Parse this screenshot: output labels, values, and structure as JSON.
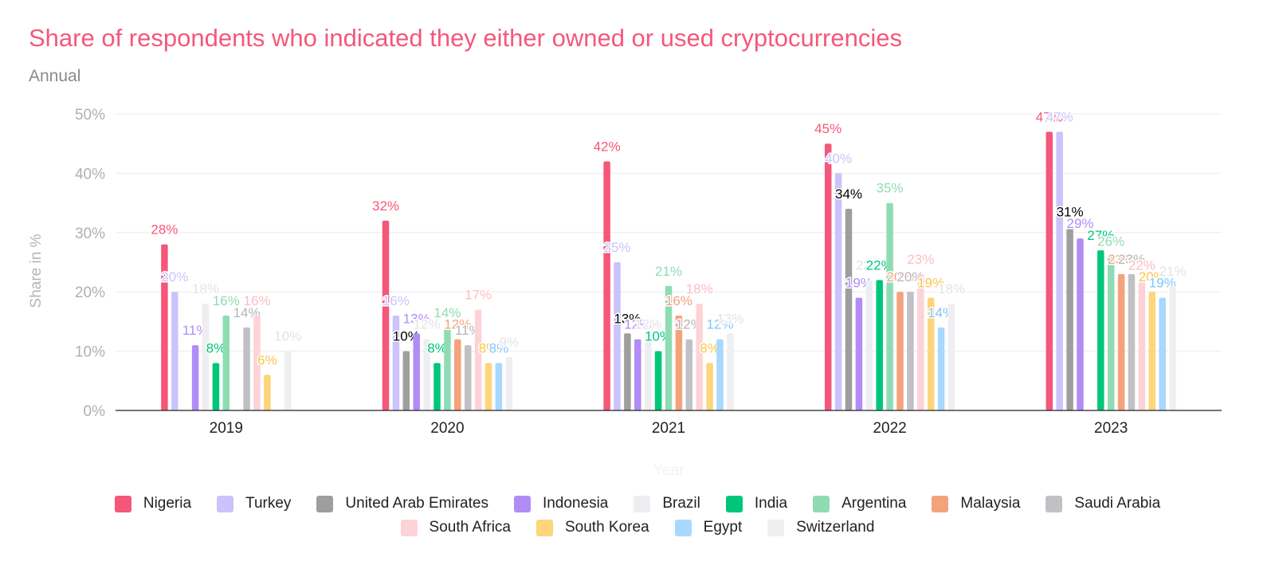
{
  "chart_data": {
    "type": "bar",
    "title": "Share of respondents who indicated they either owned or used cryptocurrencies",
    "subtitle": "Annual",
    "xlabel": "Year",
    "ylabel": "Share in %",
    "ylim": [
      0,
      50
    ],
    "yticks": [
      "0%",
      "10%",
      "20%",
      "30%",
      "40%",
      "50%"
    ],
    "grid": true,
    "legend_position": "bottom",
    "categories": [
      "2019",
      "2020",
      "2021",
      "2022",
      "2023"
    ],
    "series": [
      {
        "name": "Nigeria",
        "color": "#f5577a",
        "values": [
          28,
          32,
          42,
          45,
          47
        ]
      },
      {
        "name": "Turkey",
        "color": "#cbc3fb",
        "values": [
          20,
          16,
          25,
          40,
          47
        ]
      },
      {
        "name": "United Arab Emirates",
        "color": "#9e9e9e",
        "values": [
          null,
          10,
          13,
          34,
          31
        ]
      },
      {
        "name": "Indonesia",
        "color": "#b18cf7",
        "values": [
          11,
          13,
          12,
          19,
          29
        ]
      },
      {
        "name": "Brazil",
        "color": "#eeeef2",
        "values": [
          18,
          12,
          12,
          22,
          null
        ]
      },
      {
        "name": "India",
        "color": "#00c67a",
        "values": [
          8,
          8,
          10,
          22,
          27
        ]
      },
      {
        "name": "Argentina",
        "color": "#8fdcb4",
        "values": [
          16,
          14,
          21,
          35,
          26
        ]
      },
      {
        "name": "Malaysia",
        "color": "#f4a27b",
        "values": [
          null,
          12,
          16,
          20,
          23
        ]
      },
      {
        "name": "Saudi Arabia",
        "color": "#c1c1c5",
        "values": [
          14,
          11,
          12,
          20,
          23
        ]
      },
      {
        "name": "South Africa",
        "color": "#fdd3d8",
        "values": [
          16,
          17,
          18,
          23,
          22
        ]
      },
      {
        "name": "South Korea",
        "color": "#fdd57a",
        "values": [
          6,
          8,
          8,
          19,
          20
        ]
      },
      {
        "name": "Egypt",
        "color": "#a8d8fd",
        "values": [
          null,
          8,
          12,
          14,
          19
        ]
      },
      {
        "name": "Switzerland",
        "color": "#efeff2",
        "values": [
          10,
          9,
          13,
          18,
          21
        ]
      }
    ]
  }
}
